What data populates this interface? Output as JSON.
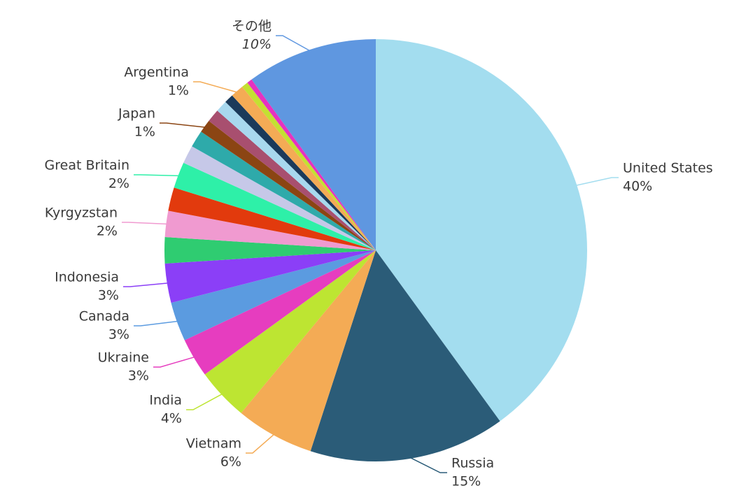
{
  "chart_data": {
    "type": "pie",
    "categories": [
      "United States",
      "Russia",
      "Vietnam",
      "India",
      "Ukraine",
      "Canada",
      "Indonesia",
      null,
      "Kyrgyzstan",
      null,
      "Great Britain",
      null,
      null,
      "Japan",
      null,
      null,
      null,
      "Argentina",
      null,
      null,
      "その他"
    ],
    "values": [
      40,
      15,
      6,
      4,
      3,
      3,
      3,
      2,
      2,
      1.8,
      2,
      1.4,
      1.3,
      1,
      1,
      0.9,
      0.7,
      1,
      0.5,
      0.4,
      10
    ],
    "value_labels": [
      "40%",
      "15%",
      "6%",
      "4%",
      "3%",
      "3%",
      "3%",
      null,
      "2%",
      null,
      "2%",
      null,
      null,
      "1%",
      null,
      null,
      null,
      "1%",
      null,
      null,
      "10%"
    ],
    "colors": [
      "#a3ddef",
      "#2b5c78",
      "#f4ab55",
      "#bde532",
      "#e63dbf",
      "#5b9be0",
      "#8b3ff7",
      "#2fcc71",
      "#f09ad0",
      "#e23a0d",
      "#2ef0a8",
      "#c6c8e8",
      "#2eaaaa",
      "#8b4513",
      "#a84f6f",
      "#a8d8ee",
      "#1b3a5a",
      "#f4ab55",
      "#c4e032",
      "#e632c0",
      "#5f97e0"
    ]
  }
}
